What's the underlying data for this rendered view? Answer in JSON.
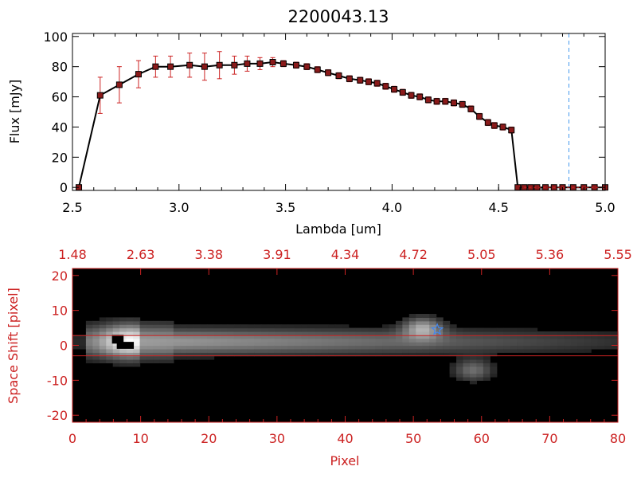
{
  "colors": {
    "axis_black": "#000000",
    "axis_red": "#cc2222",
    "errorbar": "#cc2222",
    "marker_fill": "#8b1a1a",
    "cut_line": "#4499ee",
    "star": "#4488ee",
    "band_line": "#cc2222"
  },
  "chart_data": [
    {
      "type": "line",
      "title": "2200043.13",
      "xlabel": "Lambda [um]",
      "ylabel": "Flux [mJy]",
      "xlim": [
        2.5,
        5.0
      ],
      "ylim": [
        -2,
        102
      ],
      "xticks": [
        "2.5",
        "3.0",
        "3.5",
        "4.0",
        "4.5",
        "5.0"
      ],
      "yticks": [
        "0",
        "20",
        "40",
        "60",
        "80",
        "100"
      ],
      "vertical_dashed_line_x": 4.83,
      "series": [
        {
          "x": [
            2.53,
            2.63,
            2.72,
            2.81,
            2.89,
            2.96,
            3.05,
            3.12,
            3.19,
            3.26,
            3.32,
            3.38,
            3.44,
            3.49,
            3.55,
            3.6,
            3.65,
            3.7,
            3.75,
            3.8,
            3.85,
            3.89,
            3.93,
            3.97,
            4.01,
            4.05,
            4.09,
            4.13,
            4.17,
            4.21,
            4.25,
            4.29,
            4.33,
            4.37,
            4.41,
            4.45,
            4.48,
            4.52,
            4.56,
            4.59,
            4.62,
            4.65,
            4.68,
            4.72,
            4.76,
            4.8,
            4.85,
            4.9,
            4.95,
            5.0
          ],
          "y": [
            0,
            61,
            68,
            75,
            80,
            80,
            81,
            80,
            81,
            81,
            82,
            82,
            83,
            82,
            81,
            80,
            78,
            76,
            74,
            72,
            71,
            70,
            69,
            67,
            65,
            63,
            61,
            60,
            58,
            57,
            57,
            56,
            55,
            52,
            47,
            43,
            41,
            40,
            38,
            0,
            0,
            0,
            0,
            0,
            0,
            0,
            0,
            0,
            0,
            0
          ],
          "err": [
            0,
            12,
            12,
            9,
            7,
            7,
            8,
            9,
            9,
            6,
            5,
            4,
            3,
            2,
            2,
            2,
            2,
            2,
            2,
            2,
            2,
            2,
            2,
            2,
            2,
            2,
            2,
            2,
            2,
            2,
            2,
            2,
            2,
            2,
            2,
            2,
            2,
            2,
            2,
            0,
            0,
            0,
            0,
            0,
            0,
            0,
            0,
            0,
            0,
            0
          ]
        }
      ]
    },
    {
      "type": "heatmap",
      "xlabel": "Pixel",
      "ylabel": "Space Shift [pixel]",
      "xlim": [
        0,
        80
      ],
      "ylim": [
        -22,
        22
      ],
      "xticks": [
        "0",
        "10",
        "20",
        "30",
        "40",
        "50",
        "60",
        "70",
        "80"
      ],
      "yticks": [
        "-20",
        "-10",
        "0",
        "10",
        "20"
      ],
      "top_ticks": [
        "1.48",
        "2.63",
        "3.38",
        "3.91",
        "4.34",
        "4.72",
        "5.05",
        "5.36",
        "5.55"
      ],
      "band_lines_y": [
        2.8,
        -3.0
      ],
      "star_marker": {
        "x": 53.5,
        "y": 4.5
      },
      "sources": [
        {
          "x": 8.5,
          "y": 1.5,
          "peak": 1.0
        },
        {
          "x": 52.0,
          "y": 5.0,
          "peak": 0.55
        },
        {
          "x": 59.5,
          "y": -7.0,
          "peak": 0.35
        }
      ]
    }
  ]
}
